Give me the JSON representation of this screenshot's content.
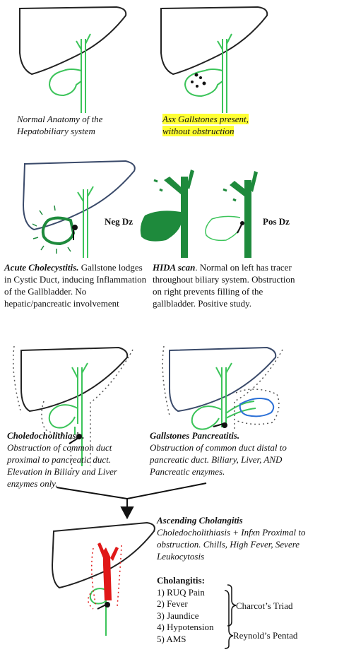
{
  "panels": {
    "normal": {
      "caption": "Normal Anatomy of the Hepatobiliary system"
    },
    "asx": {
      "caption": "Asx Gallstones present, without obstruction"
    },
    "acute": {
      "title": "Acute Cholecystitis.",
      "text": "Gallstone lodges in Cystic Duct, inducing Inflammation of the Gallbladder. No hepatic/pancreatic involvement"
    },
    "hida": {
      "title": "HIDA scan",
      "text": ". Normal on left has tracer throughout biliary system. Obstruction on right prevents filling of the gallbladder. Positive study.",
      "neg_label": "Neg Dz",
      "pos_label": "Pos Dz"
    },
    "choledo": {
      "title": "Choledocholithiasis.",
      "text": "Obstruction of common duct proximal to pancreatic duct. Elevation in Biliary and Liver enzymes only."
    },
    "pancreatitis": {
      "title": "Gallstones Pancreatitis.",
      "text": "Obstruction of common duct distal to pancreatic duct. Biliary, Liver, AND Pancreatic enzymes."
    },
    "cholangitis": {
      "title": "Ascending Cholangitis",
      "text": "Choledocholithiasis + Infxn Proximal to obstruction. Chills, High Fever, Severe Leukocytosis"
    }
  },
  "list": {
    "title": "Cholangitis:",
    "items": [
      "1) RUQ Pain",
      "2) Fever",
      "3) Jaundice",
      "4) Hypotension",
      "5) AMS"
    ],
    "triad_label": "Charcot’s Triad",
    "pentad_label": "Reynold’s Pentad"
  },
  "colors": {
    "green": "#1e8a3c",
    "light_green": "#3cc45a",
    "red": "#e01818",
    "blue": "#2a6fd6",
    "highlight": "#ffff33"
  }
}
